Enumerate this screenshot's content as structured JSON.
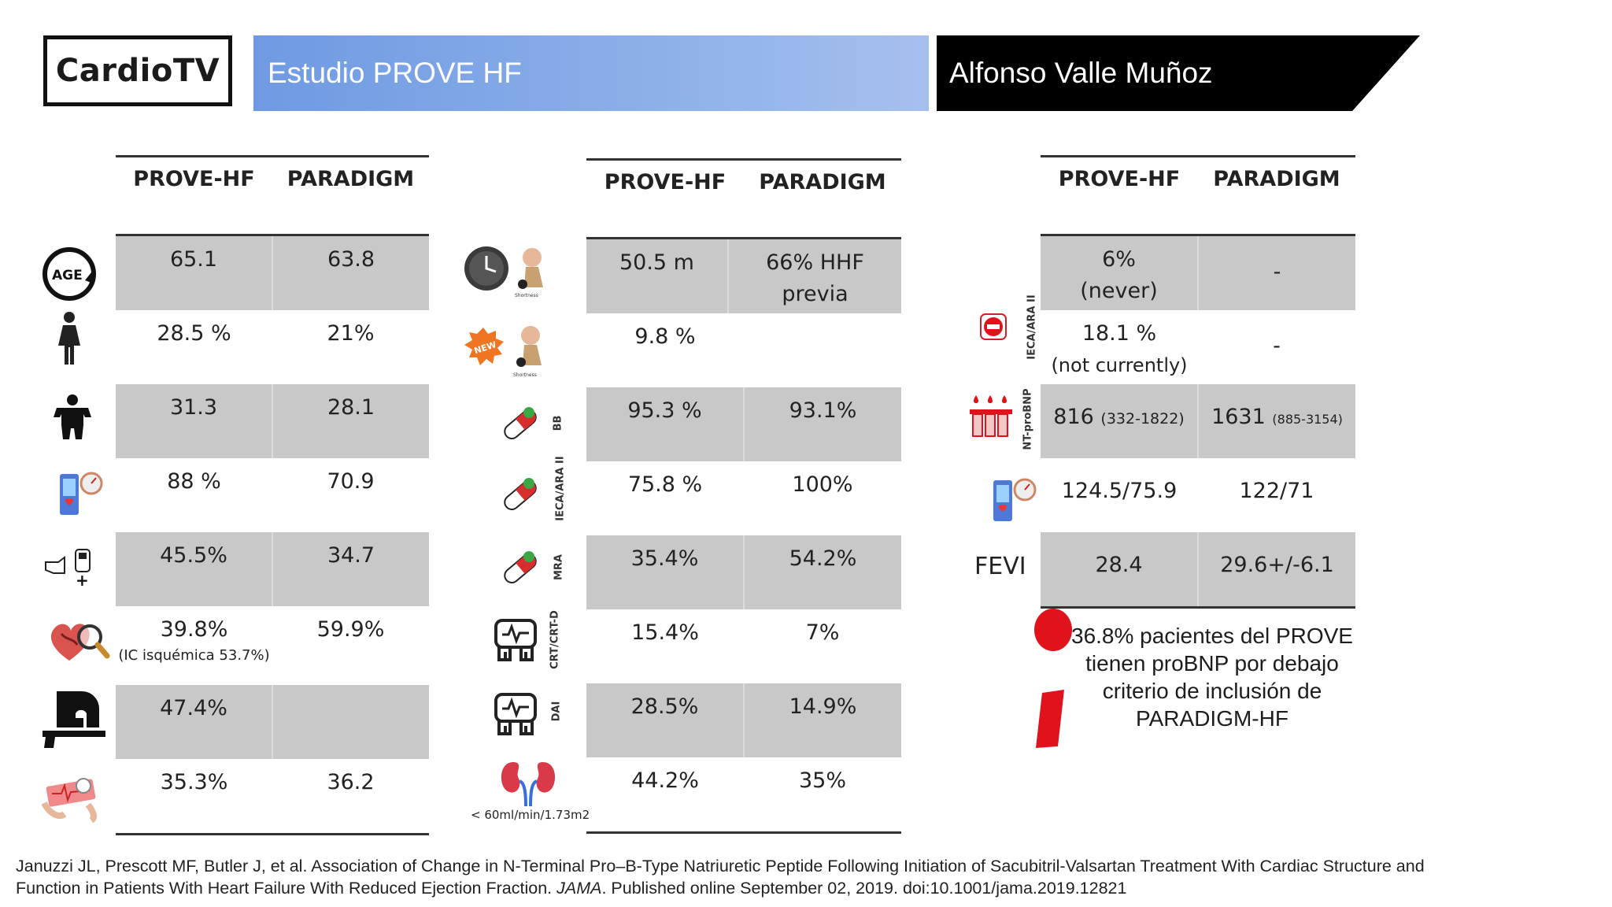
{
  "header": {
    "logo": "CardioTV",
    "title": "Estudio PROVE HF",
    "author": "Alfonso Valle Muñoz"
  },
  "colors": {
    "title_bar": "#7fa4e6",
    "author_bar": "#000000",
    "row_shade": "#c8c8c8",
    "accent_red": "#e0121b"
  },
  "table_left": {
    "col1": "PROVE-HF",
    "col2": "PARADIGM",
    "rows": [
      {
        "icon": "age-icon",
        "a": "65.1",
        "b": "63.8"
      },
      {
        "icon": "female-icon",
        "a": "28.5 %",
        "b": "21%"
      },
      {
        "icon": "body-mass-icon",
        "a": "31.3",
        "b": "28.1"
      },
      {
        "icon": "blood-pressure-monitor-icon",
        "a": "88 %",
        "b": "70.9"
      },
      {
        "icon": "glucose-meter-icon",
        "a": "45.5%",
        "b": "34.7"
      },
      {
        "icon": "heart-magnifier-icon",
        "a": "39.8%",
        "a_sub": "(IC isquémica 53.7%)",
        "b": "59.9%"
      },
      {
        "icon": "mri-scanner-icon",
        "a": "47.4%",
        "b": ""
      },
      {
        "icon": "ecg-strip-icon",
        "a": "35.3%",
        "b": "36.2"
      }
    ]
  },
  "table_mid": {
    "col1": "PROVE-HF",
    "col2": "PARADIGM",
    "rows": [
      {
        "icon": "clock-shortness-icon",
        "a": "50.5 m",
        "b": "66% HHF previa"
      },
      {
        "icon": "new-shortness-icon",
        "a": "9.8 %",
        "b": ""
      },
      {
        "icon": "pill-icon",
        "label": "BB",
        "a": "95.3 %",
        "b": "93.1%"
      },
      {
        "icon": "pill-icon",
        "label": "IECA/ARA II",
        "a": "75.8 %",
        "b": "100%"
      },
      {
        "icon": "pill-icon",
        "label": "MRA",
        "a": "35.4%",
        "b": "54.2%"
      },
      {
        "icon": "crt-device-icon",
        "label": "CRT/CRT-D",
        "a": "15.4%",
        "b": "7%"
      },
      {
        "icon": "dai-device-icon",
        "label": "DAI",
        "a": "28.5%",
        "b": "14.9%"
      },
      {
        "icon": "kidney-icon",
        "a": "44.2%",
        "b": "35%"
      }
    ],
    "kidney_label": "< 60ml/min/1.73m2",
    "small_labels": [
      "Shortness",
      "Shortness"
    ],
    "new_badge": "NEW"
  },
  "table_right": {
    "col1": "PROVE-HF",
    "col2": "PARADIGM",
    "iecara_label": "IECA/ARA II",
    "ntprobnp_label": "NT-proBNP",
    "rows": [
      {
        "a": "6%",
        "a2": "(never)",
        "b": "-"
      },
      {
        "a": "18.1 %",
        "a2": "(not currently)",
        "b": "-"
      },
      {
        "a": "816",
        "a_range": "(332-1822)",
        "b": "1631",
        "b_range": "(885-3154)"
      },
      {
        "a": "124.5/75.9",
        "b": "122/71"
      },
      {
        "a": "28.4",
        "b": "29.6+/-6.1"
      }
    ],
    "fevi": "FEVI",
    "note": "36.8% pacientes del PROVE tienen proBNP por debajo criterio de inclusión de PARADIGM-HF"
  },
  "reference": {
    "line1": "Januzzi JL, Prescott MF, Butler J, et al. Association of Change in N-Terminal Pro–B-Type Natriuretic Peptide Following Initiation of Sacubitril-Valsartan Treatment With Cardiac Structure and",
    "line2_a": "Function in Patients With Heart Failure With Reduced Ejection Fraction. ",
    "journal": "JAMA",
    "line2_b": ". Published online September 02, 2019. doi:10.1001/jama.2019.12821"
  }
}
